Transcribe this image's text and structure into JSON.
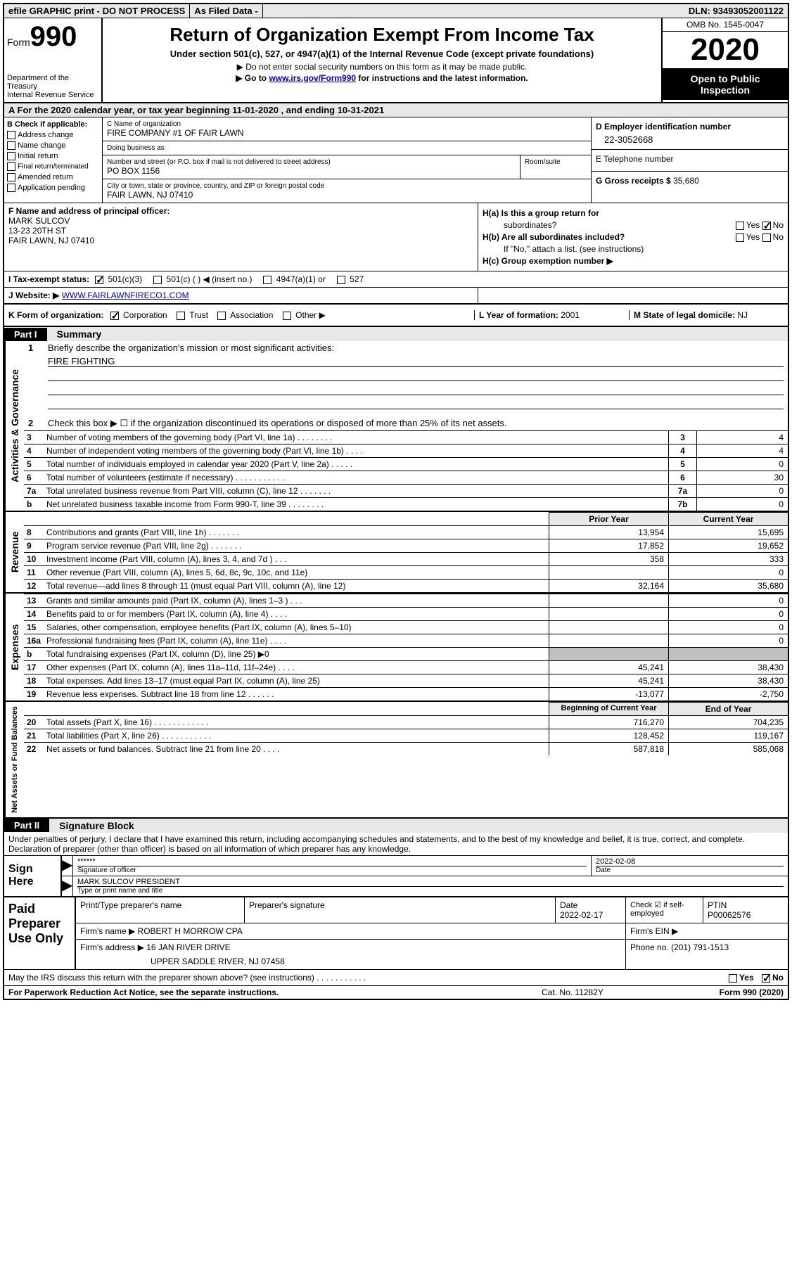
{
  "top_bar": {
    "efile": "efile GRAPHIC print - DO NOT PROCESS",
    "as_filed": "As Filed Data -",
    "dln": "DLN: 93493052001122"
  },
  "header": {
    "form_prefix": "Form",
    "form_number": "990",
    "dept1": "Department of the Treasury",
    "dept2": "Internal Revenue Service",
    "title": "Return of Organization Exempt From Income Tax",
    "subtitle1": "Under section 501(c), 527, or 4947(a)(1) of the Internal Revenue Code (except private foundations)",
    "subtitle2": "▶ Do not enter social security numbers on this form as it may be made public.",
    "subtitle3_pre": "▶ Go to ",
    "subtitle3_link": "www.irs.gov/Form990",
    "subtitle3_post": " for instructions and the latest information.",
    "omb": "OMB No. 1545-0047",
    "year": "2020",
    "open_public": "Open to Public Inspection"
  },
  "row_a": "A  For the 2020 calendar year, or tax year beginning 11-01-2020   , and ending 10-31-2021",
  "box_b": {
    "header": "B Check if applicable:",
    "opts": [
      "Address change",
      "Name change",
      "Initial return",
      "Final return/terminated",
      "Amended return",
      "Application pending"
    ]
  },
  "box_c": {
    "name_label": "C Name of organization",
    "name": "FIRE COMPANY #1 OF FAIR LAWN",
    "dba_label": "Doing business as",
    "dba": "",
    "street_label": "Number and street (or P.O. box if mail is not delivered to street address)",
    "street": "PO BOX 1156",
    "room_label": "Room/suite",
    "city_label": "City or town, state or province, country, and ZIP or foreign postal code",
    "city": "FAIR LAWN, NJ  07410"
  },
  "box_d": {
    "label": "D Employer identification number",
    "value": "22-3052668"
  },
  "box_e": {
    "label": "E Telephone number",
    "value": ""
  },
  "box_g": {
    "label": "G Gross receipts $ ",
    "value": "35,680"
  },
  "box_f": {
    "label": "F  Name and address of principal officer:",
    "line1": "MARK SULCOV",
    "line2": "13-23 20TH ST",
    "line3": "FAIR LAWN, NJ  07410"
  },
  "box_h": {
    "ha_label": "H(a) Is this a group return for",
    "ha_label2": "subordinates?",
    "hb_label": "H(b) Are all subordinates included?",
    "hnote": "If \"No,\" attach a list. (see instructions)",
    "hc_label": "H(c) Group exemption number ▶",
    "yes": "Yes",
    "no": "No"
  },
  "row_i": {
    "label": "I  Tax-exempt status:",
    "opt1": "501(c)(3)",
    "opt2": "501(c) (   ) ◀ (insert no.)",
    "opt3": "4947(a)(1) or",
    "opt4": "527"
  },
  "row_j": {
    "label": "J  Website: ▶  ",
    "value": "WWW.FAIRLAWNFIRECO1.COM"
  },
  "row_k": {
    "label": "K Form of organization:",
    "opts": [
      "Corporation",
      "Trust",
      "Association",
      "Other ▶"
    ],
    "l_label": "L Year of formation: ",
    "l_value": "2001",
    "m_label": "M State of legal domicile: ",
    "m_value": "NJ"
  },
  "part1": {
    "label": "Part I",
    "title": "Summary"
  },
  "sect_ag": {
    "label": "Activities & Governance",
    "q1": "Briefly describe the organization's mission or most significant activities:",
    "q1val": "FIRE FIGHTING",
    "q2": "Check this box ▶ ☐  if the organization discontinued its operations or disposed of more than 25% of its net assets.",
    "lines": [
      {
        "n": "3",
        "t": "Number of voting members of the governing body (Part VI, line 1a)   .    .    .    .    .    .    .    .",
        "b": "3",
        "v": "4"
      },
      {
        "n": "4",
        "t": "Number of independent voting members of the governing body (Part VI, line 1b)   .    .    .    .",
        "b": "4",
        "v": "4"
      },
      {
        "n": "5",
        "t": "Total number of individuals employed in calendar year 2020 (Part V, line 2a)   .    .    .    .    .",
        "b": "5",
        "v": "0"
      },
      {
        "n": "6",
        "t": "Total number of volunteers (estimate if necessary)   .    .    .    .    .    .    .    .    .    .    .",
        "b": "6",
        "v": "30"
      },
      {
        "n": "7a",
        "t": "Total unrelated business revenue from Part VIII, column (C), line 12   .    .    .    .    .    .    .",
        "b": "7a",
        "v": "0"
      },
      {
        "n": "b",
        "t": "Net unrelated business taxable income from Form 990-T, line 39   .    .    .    .    .    .    .    .",
        "b": "7b",
        "v": "0"
      }
    ]
  },
  "headers_py_cy": {
    "py": "Prior Year",
    "cy": "Current Year"
  },
  "sect_rev": {
    "label": "Revenue",
    "lines": [
      {
        "n": "8",
        "t": "Contributions and grants (Part VIII, line 1h)   .    .    .    .    .    .    .",
        "py": "13,954",
        "cy": "15,695"
      },
      {
        "n": "9",
        "t": "Program service revenue (Part VIII, line 2g)   .    .    .    .    .    .    .",
        "py": "17,852",
        "cy": "19,652"
      },
      {
        "n": "10",
        "t": "Investment income (Part VIII, column (A), lines 3, 4, and 7d )   .    .    .",
        "py": "358",
        "cy": "333"
      },
      {
        "n": "11",
        "t": "Other revenue (Part VIII, column (A), lines 5, 6d, 8c, 9c, 10c, and 11e)",
        "py": "",
        "cy": "0"
      },
      {
        "n": "12",
        "t": "Total revenue—add lines 8 through 11 (must equal Part VIII, column (A), line 12)",
        "py": "32,164",
        "cy": "35,680"
      }
    ]
  },
  "sect_exp": {
    "label": "Expenses",
    "lines": [
      {
        "n": "13",
        "t": "Grants and similar amounts paid (Part IX, column (A), lines 1–3 )   .    .    .",
        "py": "",
        "cy": "0"
      },
      {
        "n": "14",
        "t": "Benefits paid to or for members (Part IX, column (A), line 4)   .    .    .    .",
        "py": "",
        "cy": "0"
      },
      {
        "n": "15",
        "t": "Salaries, other compensation, employee benefits (Part IX, column (A), lines 5–10)",
        "py": "",
        "cy": "0"
      },
      {
        "n": "16a",
        "t": "Professional fundraising fees (Part IX, column (A), line 11e)   .    .    .    .",
        "py": "",
        "cy": "0"
      },
      {
        "n": "b",
        "t": "Total fundraising expenses (Part IX, column (D), line 25) ▶0",
        "py": "GRAY",
        "cy": "GRAY"
      },
      {
        "n": "17",
        "t": "Other expenses (Part IX, column (A), lines 11a–11d, 11f–24e)   .    .    .    .",
        "py": "45,241",
        "cy": "38,430"
      },
      {
        "n": "18",
        "t": "Total expenses. Add lines 13–17 (must equal Part IX, column (A), line 25)",
        "py": "45,241",
        "cy": "38,430"
      },
      {
        "n": "19",
        "t": "Revenue less expenses. Subtract line 18 from line 12   .    .    .    .    .    .",
        "py": "-13,077",
        "cy": "-2,750"
      }
    ]
  },
  "headers_bcy_eoy": {
    "bcy": "Beginning of Current Year",
    "eoy": "End of Year"
  },
  "sect_na": {
    "label": "Net Assets or Fund Balances",
    "lines": [
      {
        "n": "20",
        "t": "Total assets (Part X, line 16)   .    .    .    .    .    .    .    .    .    .    .    .",
        "py": "716,270",
        "cy": "704,235"
      },
      {
        "n": "21",
        "t": "Total liabilities (Part X, line 26)   .    .    .    .    .    .    .    .    .    .    .",
        "py": "128,452",
        "cy": "119,167"
      },
      {
        "n": "22",
        "t": "Net assets or fund balances. Subtract line 21 from line 20   .    .    .    .",
        "py": "587,818",
        "cy": "585,068"
      }
    ]
  },
  "part2": {
    "label": "Part II",
    "title": "Signature Block"
  },
  "sig": {
    "declaration": "Under penalties of perjury, I declare that I have examined this return, including accompanying schedules and statements, and to the best of my knowledge and belief, it is true, correct, and complete. Declaration of preparer (other than officer) is based on all information of which preparer has any knowledge.",
    "sign_here": "Sign Here",
    "stars": "******",
    "sig_label": "Signature of officer",
    "date_label": "Date",
    "date": "2022-02-08",
    "name": "MARK SULCOV PRESIDENT",
    "name_label": "Type or print name and title"
  },
  "paid": {
    "label": "Paid Preparer Use Only",
    "h1": "Print/Type preparer's name",
    "h2": "Preparer's signature",
    "h3": "Date",
    "h3v": "2022-02-17",
    "h4": "Check ☑ if self-employed",
    "h5": "PTIN",
    "h5v": "P00062576",
    "firm_name_label": "Firm's name    ▶ ",
    "firm_name": "ROBERT H MORROW CPA",
    "firm_ein_label": "Firm's EIN ▶",
    "firm_addr_label": "Firm's address ▶ ",
    "firm_addr1": "16 JAN RIVER DRIVE",
    "firm_addr2": "UPPER SADDLE RIVER, NJ  07458",
    "phone_label": "Phone no. ",
    "phone": "(201) 791-1513"
  },
  "bottom": {
    "discuss": "May the IRS discuss this return with the preparer shown above? (see instructions)   .    .    .    .    .    .    .    .    .    .    .",
    "yes": "Yes",
    "no": "No"
  },
  "footer": {
    "left": "For Paperwork Reduction Act Notice, see the separate instructions.",
    "mid": "Cat. No. 11282Y",
    "right_pre": "Form ",
    "right_num": "990",
    "right_post": " (2020)"
  }
}
